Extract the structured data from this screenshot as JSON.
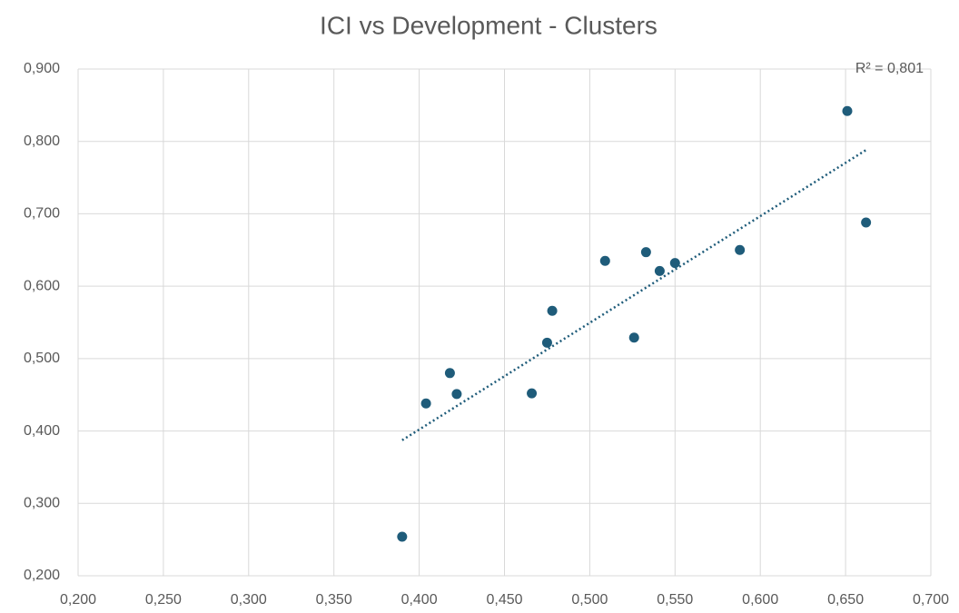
{
  "chart_data": {
    "type": "scatter",
    "title": "ICI vs Development - Clusters",
    "series": [
      {
        "color": "#1f5c7a",
        "x": [
          0.39,
          0.404,
          0.418,
          0.422,
          0.466,
          0.475,
          0.478,
          0.509,
          0.526,
          0.533,
          0.541,
          0.55,
          0.588,
          0.651,
          0.662
        ],
        "values": [
          0.254,
          0.438,
          0.48,
          0.451,
          0.452,
          0.522,
          0.566,
          0.635,
          0.529,
          0.647,
          0.621,
          0.632,
          0.65,
          0.842,
          0.688
        ]
      }
    ],
    "trendline": {
      "type": "linear",
      "style": "dotted",
      "annotation": "R² = 0,801"
    },
    "xlim": [
      0.2,
      0.7
    ],
    "xticks": [
      {
        "value": 0.2,
        "label": "0,200"
      },
      {
        "value": 0.25,
        "label": "0,250"
      },
      {
        "value": 0.3,
        "label": "0,300"
      },
      {
        "value": 0.35,
        "label": "0,350"
      },
      {
        "value": 0.4,
        "label": "0,400"
      },
      {
        "value": 0.45,
        "label": "0,450"
      },
      {
        "value": 0.5,
        "label": "0,500"
      },
      {
        "value": 0.55,
        "label": "0,550"
      },
      {
        "value": 0.6,
        "label": "0,600"
      },
      {
        "value": 0.65,
        "label": "0,650"
      },
      {
        "value": 0.7,
        "label": "0,700"
      }
    ],
    "ylim": [
      0.2,
      0.9
    ],
    "yticks": [
      {
        "value": 0.2,
        "label": "0,200"
      },
      {
        "value": 0.3,
        "label": "0,300"
      },
      {
        "value": 0.4,
        "label": "0,400"
      },
      {
        "value": 0.5,
        "label": "0,500"
      },
      {
        "value": 0.6,
        "label": "0,600"
      },
      {
        "value": 0.7,
        "label": "0,700"
      },
      {
        "value": 0.8,
        "label": "0,800"
      },
      {
        "value": 0.9,
        "label": "0,900"
      }
    ],
    "grid": true
  }
}
